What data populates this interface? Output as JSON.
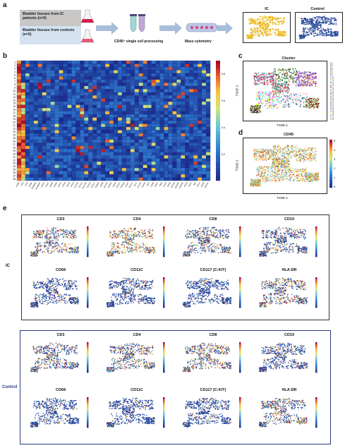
{
  "panels": {
    "a": "a",
    "b": "b",
    "c": "c",
    "d": "d",
    "e": "e"
  },
  "workflow": {
    "ic_box": "Bladder tissues from IC patients (n=5)",
    "control_box": "Bladder tissues from controls (n=5)",
    "step1": "CD45⁺ single cell processing",
    "step2": "Mass cytometry",
    "ic_title": "IC",
    "control_title": "Control"
  },
  "heatmap": {
    "row_labels": [
      "1",
      "2",
      "3",
      "4",
      "5",
      "6",
      "7",
      "8",
      "9",
      "10",
      "11",
      "12",
      "13",
      "14",
      "15",
      "16",
      "17",
      "18",
      "19",
      "20",
      "21",
      "22",
      "23",
      "24",
      "25",
      "26",
      "27",
      "28",
      "29",
      "30",
      "31",
      "32",
      "33",
      "34",
      "35",
      "36",
      "37",
      "38"
    ],
    "col_labels": [
      "CD45",
      "CD3",
      "CD4",
      "CD8a",
      "CD45RA",
      "CD45RO",
      "CCR7",
      "CD27",
      "CD28",
      "CD56",
      "CD16",
      "CD19",
      "CD20",
      "CD14",
      "CD11b",
      "CD11c",
      "HLA-DR",
      "CD123",
      "CD117",
      "CD66b",
      "CD68",
      "CD163",
      "CD206",
      "CD38",
      "CD161",
      "TCRgd",
      "CD25",
      "CD127",
      "PD-1",
      "CTLA4",
      "FoxP3",
      "Ki67",
      "CD39",
      "CD57",
      "TIM3",
      "LAG3",
      "CD69",
      "CD103",
      "CXCR3",
      "CXCR5",
      "ICOS",
      "TIGIT",
      "IgD",
      "CD1c",
      "CD33",
      "CD141"
    ],
    "colorbar_ticks": [
      "0.8",
      "0.6",
      "0.4",
      "0.2"
    ]
  },
  "cluster_plot": {
    "title": "Cluster",
    "xlabel": "TSNE-1",
    "ylabel": "TSNE-2",
    "legend_entries": [
      "1",
      "2",
      "3",
      "4",
      "5",
      "6",
      "7",
      "8",
      "9",
      "10",
      "11",
      "12",
      "13",
      "14",
      "15",
      "16",
      "17",
      "18",
      "19",
      "20",
      "21",
      "22",
      "23",
      "24",
      "25",
      "26",
      "27",
      "28",
      "29",
      "30",
      "31",
      "32",
      "33",
      "34",
      "35",
      "36",
      "37",
      "38"
    ]
  },
  "cd45_plot": {
    "title": "CD45",
    "xlabel": "TSNE-1",
    "ylabel": "TSNE-2",
    "colorbar_ticks": [
      "5",
      "4",
      "3",
      "2",
      "1",
      "0"
    ]
  },
  "panel_e": {
    "ic_label": "IC",
    "control_label": "Control",
    "markers_row1": [
      "CD3",
      "CD4",
      "CD8",
      "CD19"
    ],
    "markers_row2": [
      "CD68",
      "CD11C",
      "CD117 (C-KIT)",
      "HLA-DR"
    ]
  },
  "colors": {
    "ic_box": "#c9c6c6",
    "control_box": "#d4e2f2",
    "arrow": "#a7bedb",
    "control_frame": "#2a3a7a",
    "heat_low": "#1a2a8c",
    "heat_high": "#a50026"
  }
}
